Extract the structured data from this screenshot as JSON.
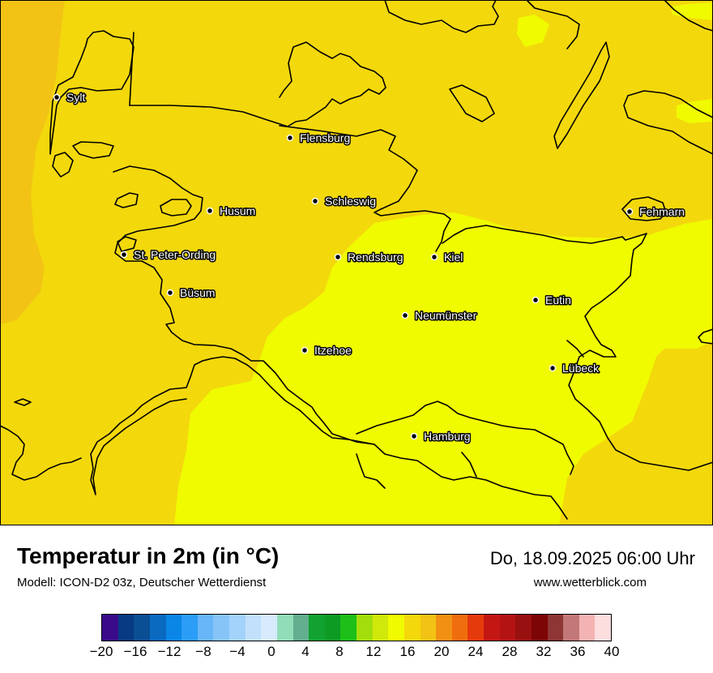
{
  "map": {
    "colors": {
      "base": "#f3d80c",
      "warm_west": "#f2c314",
      "cool_east": "#f0fb00",
      "outline": "#000000"
    },
    "cities": [
      {
        "name": "Sylt"
      },
      {
        "name": "Flensburg"
      },
      {
        "name": "Schleswig"
      },
      {
        "name": "Husum"
      },
      {
        "name": "St. Peter-Ording"
      },
      {
        "name": "Rendsburg"
      },
      {
        "name": "Kiel"
      },
      {
        "name": "Fehmarn"
      },
      {
        "name": "Büsum"
      },
      {
        "name": "Eutin"
      },
      {
        "name": "Neumünster"
      },
      {
        "name": "Itzehoe"
      },
      {
        "name": "Lübeck"
      },
      {
        "name": "Hamburg"
      }
    ]
  },
  "header": {
    "title": "Temperatur in 2m (in °C)",
    "subtitle": "Modell: ICON-D2 03z, Deutscher Wetterdienst",
    "datetime": "Do, 18.09.2025 06:00 Uhr",
    "website": "www.wetterblick.com"
  },
  "legend": {
    "unit": "°C",
    "colors": [
      "#3a0a8a",
      "#073a82",
      "#0a4e94",
      "#0a6ac0",
      "#0a86e6",
      "#2b9df6",
      "#68b5f8",
      "#86c4f8",
      "#a3d2fa",
      "#c2e0fc",
      "#d7ebfd",
      "#92ddb9",
      "#62ae8e",
      "#12a232",
      "#0e9b24",
      "#1cc018",
      "#a3de0c",
      "#d0e80a",
      "#f0fb00",
      "#f3d80c",
      "#f2c314",
      "#f29014",
      "#ef6d0e",
      "#e53a0c",
      "#c41612",
      "#b41314",
      "#98100f",
      "#7d0505",
      "#8e3535",
      "#c37878",
      "#f4b3b3",
      "#fcdede"
    ],
    "ticks": [
      "−20",
      "−16",
      "−12",
      "−8",
      "−4",
      "0",
      "4",
      "8",
      "12",
      "16",
      "20",
      "24",
      "28",
      "32",
      "36",
      "40"
    ]
  }
}
